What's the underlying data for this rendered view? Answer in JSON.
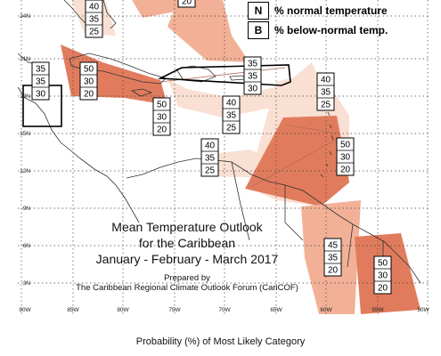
{
  "map": {
    "title_lines": [
      "Mean Temperature Outlook",
      "for the Caribbean",
      "January - February - March 2017"
    ],
    "prepared_lines": [
      "Prepared by",
      "The Caribbean Regional Climate Outlook Forum (CariCOF)"
    ],
    "caption": "Probability (%) of Most Likely Category",
    "legend": [
      {
        "key": "N",
        "text": "% normal temperature"
      },
      {
        "key": "B",
        "text": "% below-normal temp."
      }
    ],
    "lat_labels": [
      "24N",
      "21N",
      "18N",
      "15N",
      "12N",
      "9N",
      "6N",
      "3N"
    ],
    "lon_labels": [
      "90W",
      "85W",
      "80W",
      "75W",
      "70W",
      "65W",
      "60W",
      "55W",
      "50W"
    ],
    "colors": {
      "light": "#f9e0d3",
      "medium": "#f2b197",
      "dark": "#e07c5d",
      "coast": "#333333"
    },
    "probability_boxes": [
      {
        "id": "bahamas",
        "values": [
          "40",
          "35",
          "25"
        ]
      },
      {
        "id": "north-edge",
        "values": [
          "20"
        ]
      },
      {
        "id": "yucatan",
        "values": [
          "35",
          "35",
          "30"
        ]
      },
      {
        "id": "cuba",
        "values": [
          "50",
          "30",
          "20"
        ]
      },
      {
        "id": "hispaniola",
        "values": [
          "35",
          "35",
          "30"
        ]
      },
      {
        "id": "jamaica",
        "values": [
          "50",
          "30",
          "20"
        ]
      },
      {
        "id": "caribbean-sea",
        "values": [
          "40",
          "35",
          "25"
        ]
      },
      {
        "id": "puerto-rico",
        "values": [
          "40",
          "35",
          "25"
        ]
      },
      {
        "id": "colombia-coast",
        "values": [
          "40",
          "35",
          "25"
        ]
      },
      {
        "id": "lesser-antilles",
        "values": [
          "50",
          "30",
          "20"
        ]
      },
      {
        "id": "guyana",
        "values": [
          "45",
          "35",
          "20"
        ]
      },
      {
        "id": "suriname",
        "values": [
          "50",
          "30",
          "20"
        ]
      }
    ]
  }
}
